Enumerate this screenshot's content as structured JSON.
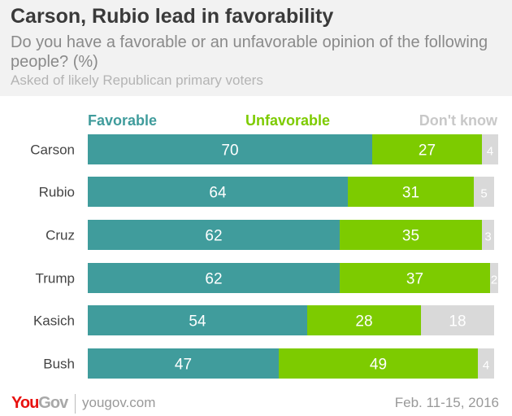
{
  "header": {
    "title": "Carson, Rubio lead in favorability",
    "subtitle": "Do you have a favorable or an unfavorable opinion of the following people? (%)",
    "note": "Asked of likely Republican primary voters"
  },
  "footer": {
    "logo_you": "You",
    "logo_gov": "Gov",
    "url": "yougov.com",
    "date": "Feb. 11-15, 2016"
  },
  "colors": {
    "favorable": "#409c9c",
    "unfavorable": "#7dcb00",
    "dont_know": "#d9d9d9"
  },
  "chart_data": {
    "type": "bar",
    "orientation": "horizontal",
    "stacked": true,
    "title": "Carson, Rubio lead in favorability",
    "categories": [
      "Carson",
      "Rubio",
      "Cruz",
      "Trump",
      "Kasich",
      "Bush"
    ],
    "series": [
      {
        "name": "Favorable",
        "values": [
          70,
          64,
          62,
          62,
          54,
          47
        ]
      },
      {
        "name": "Unfavorable",
        "values": [
          27,
          31,
          35,
          37,
          28,
          49
        ]
      },
      {
        "name": "Don't know",
        "values": [
          4,
          5,
          3,
          2,
          18,
          4
        ]
      }
    ],
    "legend": "top"
  }
}
